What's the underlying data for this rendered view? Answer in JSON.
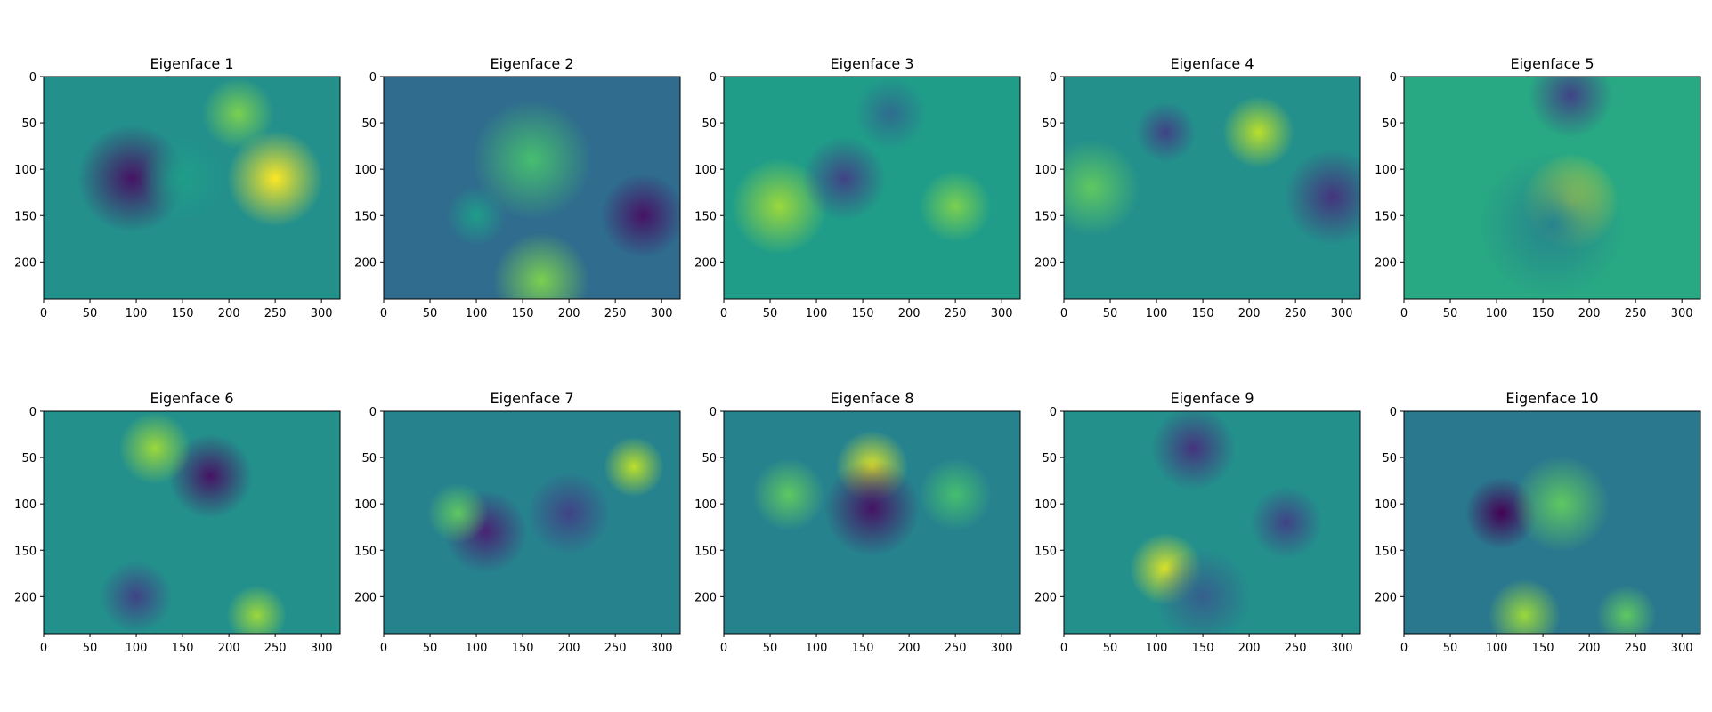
{
  "chart_data": [
    {
      "type": "heatmap",
      "title": "Eigenface 1",
      "colormap": "viridis",
      "xlim": [
        0,
        320
      ],
      "ylim": [
        240,
        0
      ],
      "x_ticks": [
        0,
        50,
        100,
        150,
        200,
        250,
        300
      ],
      "y_ticks": [
        0,
        50,
        100,
        150,
        200
      ],
      "x_tick_labels": [
        "0",
        "50",
        "100",
        "150",
        "200",
        "250",
        "300"
      ],
      "y_tick_labels": [
        "0",
        "50",
        "100",
        "150",
        "200"
      ],
      "pattern": {
        "bg": 0.5,
        "blobs": [
          {
            "x": 95,
            "y": 110,
            "r": 45,
            "v": -0.45
          },
          {
            "x": 250,
            "y": 110,
            "r": 40,
            "v": 0.5
          },
          {
            "x": 210,
            "y": 40,
            "r": 30,
            "v": 0.3
          },
          {
            "x": 150,
            "y": 110,
            "r": 35,
            "v": 0.05
          }
        ]
      }
    },
    {
      "type": "heatmap",
      "title": "Eigenface 2",
      "colormap": "viridis",
      "xlim": [
        0,
        320
      ],
      "ylim": [
        240,
        0
      ],
      "x_ticks": [
        0,
        50,
        100,
        150,
        200,
        250,
        300
      ],
      "y_ticks": [
        0,
        50,
        100,
        150,
        200
      ],
      "x_tick_labels": [
        "0",
        "50",
        "100",
        "150",
        "200",
        "250",
        "300"
      ],
      "y_tick_labels": [
        "0",
        "50",
        "100",
        "150",
        "200"
      ],
      "pattern": {
        "bg": 0.35,
        "blobs": [
          {
            "x": 160,
            "y": 90,
            "r": 50,
            "v": 0.35
          },
          {
            "x": 280,
            "y": 150,
            "r": 35,
            "v": -0.3
          },
          {
            "x": 170,
            "y": 220,
            "r": 40,
            "v": 0.45
          },
          {
            "x": 100,
            "y": 150,
            "r": 25,
            "v": 0.2
          }
        ]
      }
    },
    {
      "type": "heatmap",
      "title": "Eigenface 3",
      "colormap": "viridis",
      "xlim": [
        0,
        320
      ],
      "ylim": [
        240,
        0
      ],
      "x_ticks": [
        0,
        50,
        100,
        150,
        200,
        250,
        300
      ],
      "y_ticks": [
        0,
        50,
        100,
        150,
        200
      ],
      "x_tick_labels": [
        "0",
        "50",
        "100",
        "150",
        "200",
        "250",
        "300"
      ],
      "y_tick_labels": [
        "0",
        "50",
        "100",
        "150",
        "200"
      ],
      "pattern": {
        "bg": 0.55,
        "blobs": [
          {
            "x": 60,
            "y": 140,
            "r": 40,
            "v": 0.3
          },
          {
            "x": 130,
            "y": 110,
            "r": 35,
            "v": -0.35
          },
          {
            "x": 250,
            "y": 140,
            "r": 30,
            "v": 0.25
          },
          {
            "x": 180,
            "y": 40,
            "r": 30,
            "v": -0.2
          }
        ]
      }
    },
    {
      "type": "heatmap",
      "title": "Eigenface 4",
      "colormap": "viridis",
      "xlim": [
        0,
        320
      ],
      "ylim": [
        240,
        0
      ],
      "x_ticks": [
        0,
        50,
        100,
        150,
        200,
        250,
        300
      ],
      "y_ticks": [
        0,
        50,
        100,
        150,
        200
      ],
      "x_tick_labels": [
        "0",
        "50",
        "100",
        "150",
        "200",
        "250",
        "300"
      ],
      "y_tick_labels": [
        "0",
        "50",
        "100",
        "150",
        "200"
      ],
      "pattern": {
        "bg": 0.5,
        "blobs": [
          {
            "x": 30,
            "y": 120,
            "r": 40,
            "v": 0.25
          },
          {
            "x": 290,
            "y": 130,
            "r": 40,
            "v": -0.35
          },
          {
            "x": 210,
            "y": 60,
            "r": 30,
            "v": 0.4
          },
          {
            "x": 110,
            "y": 60,
            "r": 25,
            "v": -0.3
          }
        ]
      }
    },
    {
      "type": "heatmap",
      "title": "Eigenface 5",
      "colormap": "viridis",
      "xlim": [
        0,
        320
      ],
      "ylim": [
        240,
        0
      ],
      "x_ticks": [
        0,
        50,
        100,
        150,
        200,
        250,
        300
      ],
      "y_ticks": [
        0,
        50,
        100,
        150,
        200
      ],
      "x_tick_labels": [
        "0",
        "50",
        "100",
        "150",
        "200",
        "250",
        "300"
      ],
      "y_tick_labels": [
        "0",
        "50",
        "100",
        "150",
        "200"
      ],
      "pattern": {
        "bg": 0.6,
        "blobs": [
          {
            "x": 180,
            "y": 20,
            "r": 35,
            "v": -0.4
          },
          {
            "x": 180,
            "y": 135,
            "r": 40,
            "v": 0.35
          },
          {
            "x": 160,
            "y": 160,
            "r": 60,
            "v": -0.15
          }
        ]
      }
    },
    {
      "type": "heatmap",
      "title": "Eigenface 6",
      "colormap": "viridis",
      "xlim": [
        0,
        320
      ],
      "ylim": [
        240,
        0
      ],
      "x_ticks": [
        0,
        50,
        100,
        150,
        200,
        250,
        300
      ],
      "y_ticks": [
        0,
        50,
        100,
        150,
        200
      ],
      "x_tick_labels": [
        "0",
        "50",
        "100",
        "150",
        "200",
        "250",
        "300"
      ],
      "y_tick_labels": [
        "0",
        "50",
        "100",
        "150",
        "200"
      ],
      "pattern": {
        "bg": 0.5,
        "blobs": [
          {
            "x": 180,
            "y": 70,
            "r": 35,
            "v": -0.45
          },
          {
            "x": 120,
            "y": 40,
            "r": 30,
            "v": 0.35
          },
          {
            "x": 100,
            "y": 200,
            "r": 30,
            "v": -0.3
          },
          {
            "x": 230,
            "y": 220,
            "r": 25,
            "v": 0.35
          }
        ]
      }
    },
    {
      "type": "heatmap",
      "title": "Eigenface 7",
      "colormap": "viridis",
      "xlim": [
        0,
        320
      ],
      "ylim": [
        240,
        0
      ],
      "x_ticks": [
        0,
        50,
        100,
        150,
        200,
        250,
        300
      ],
      "y_ticks": [
        0,
        50,
        100,
        150,
        200
      ],
      "x_tick_labels": [
        "0",
        "50",
        "100",
        "150",
        "200",
        "250",
        "300"
      ],
      "y_tick_labels": [
        "0",
        "50",
        "100",
        "150",
        "200"
      ],
      "pattern": {
        "bg": 0.45,
        "blobs": [
          {
            "x": 110,
            "y": 130,
            "r": 35,
            "v": -0.35
          },
          {
            "x": 200,
            "y": 110,
            "r": 35,
            "v": -0.25
          },
          {
            "x": 270,
            "y": 60,
            "r": 25,
            "v": 0.45
          },
          {
            "x": 80,
            "y": 110,
            "r": 25,
            "v": 0.3
          }
        ]
      }
    },
    {
      "type": "heatmap",
      "title": "Eigenface 8",
      "colormap": "viridis",
      "xlim": [
        0,
        320
      ],
      "ylim": [
        240,
        0
      ],
      "x_ticks": [
        0,
        50,
        100,
        150,
        200,
        250,
        300
      ],
      "y_ticks": [
        0,
        50,
        100,
        150,
        200
      ],
      "x_tick_labels": [
        "0",
        "50",
        "100",
        "150",
        "200",
        "250",
        "300"
      ],
      "y_tick_labels": [
        "0",
        "50",
        "100",
        "150",
        "200"
      ],
      "pattern": {
        "bg": 0.45,
        "blobs": [
          {
            "x": 160,
            "y": 60,
            "r": 30,
            "v": 0.5
          },
          {
            "x": 160,
            "y": 105,
            "r": 40,
            "v": -0.4
          },
          {
            "x": 70,
            "y": 90,
            "r": 30,
            "v": 0.3
          },
          {
            "x": 250,
            "y": 90,
            "r": 30,
            "v": 0.25
          }
        ]
      }
    },
    {
      "type": "heatmap",
      "title": "Eigenface 9",
      "colormap": "viridis",
      "xlim": [
        0,
        320
      ],
      "ylim": [
        240,
        0
      ],
      "x_ticks": [
        0,
        50,
        100,
        150,
        200,
        250,
        300
      ],
      "y_ticks": [
        0,
        50,
        100,
        150,
        200
      ],
      "x_tick_labels": [
        "0",
        "50",
        "100",
        "150",
        "200",
        "250",
        "300"
      ],
      "y_tick_labels": [
        "0",
        "50",
        "100",
        "150",
        "200"
      ],
      "pattern": {
        "bg": 0.5,
        "blobs": [
          {
            "x": 110,
            "y": 170,
            "r": 30,
            "v": 0.45
          },
          {
            "x": 140,
            "y": 40,
            "r": 35,
            "v": -0.35
          },
          {
            "x": 240,
            "y": 120,
            "r": 30,
            "v": -0.3
          },
          {
            "x": 150,
            "y": 200,
            "r": 40,
            "v": -0.2
          }
        ]
      }
    },
    {
      "type": "heatmap",
      "title": "Eigenface 10",
      "colormap": "viridis",
      "xlim": [
        0,
        320
      ],
      "ylim": [
        240,
        0
      ],
      "x_ticks": [
        0,
        50,
        100,
        150,
        200,
        250,
        300
      ],
      "y_ticks": [
        0,
        50,
        100,
        150,
        200
      ],
      "x_tick_labels": [
        "0",
        "50",
        "100",
        "150",
        "200",
        "250",
        "300"
      ],
      "y_tick_labels": [
        "0",
        "50",
        "100",
        "150",
        "200"
      ],
      "pattern": {
        "bg": 0.4,
        "blobs": [
          {
            "x": 105,
            "y": 110,
            "r": 30,
            "v": -0.45
          },
          {
            "x": 170,
            "y": 100,
            "r": 40,
            "v": 0.35
          },
          {
            "x": 130,
            "y": 220,
            "r": 30,
            "v": 0.45
          },
          {
            "x": 240,
            "y": 220,
            "r": 25,
            "v": 0.35
          }
        ]
      }
    }
  ]
}
